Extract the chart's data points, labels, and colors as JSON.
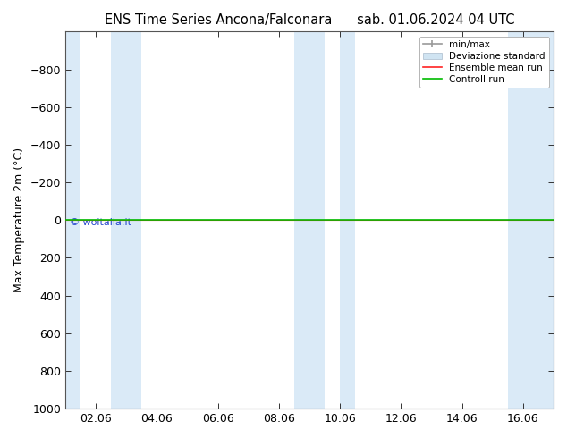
{
  "title_left": "ENS Time Series Ancona/Falconara",
  "title_right": "sab. 01.06.2024 04 UTC",
  "ylabel": "Max Temperature 2m (°C)",
  "ylim_bottom": 1000,
  "ylim_top": -1000,
  "yticks": [
    -800,
    -600,
    -400,
    -200,
    0,
    200,
    400,
    600,
    800,
    1000
  ],
  "xtick_labels": [
    "02.06",
    "04.06",
    "06.06",
    "08.06",
    "10.06",
    "12.06",
    "14.06",
    "16.06"
  ],
  "xtick_positions": [
    1,
    3,
    5,
    7,
    9,
    11,
    13,
    15
  ],
  "x_min": 0,
  "x_max": 16,
  "background_color": "#ffffff",
  "plot_bg_color": "#ffffff",
  "shaded_bands": [
    {
      "x_start": 0.0,
      "x_end": 0.5,
      "color": "#daeaf7"
    },
    {
      "x_start": 1.5,
      "x_end": 2.5,
      "color": "#daeaf7"
    },
    {
      "x_start": 7.5,
      "x_end": 8.5,
      "color": "#daeaf7"
    },
    {
      "x_start": 9.0,
      "x_end": 9.5,
      "color": "#daeaf7"
    },
    {
      "x_start": 14.5,
      "x_end": 15.5,
      "color": "#daeaf7"
    },
    {
      "x_start": 15.5,
      "x_end": 16.0,
      "color": "#daeaf7"
    }
  ],
  "control_run_y": 0,
  "control_run_color": "#00bb00",
  "ensemble_mean_color": "#ff2222",
  "watermark": "© woitalia.it",
  "watermark_color": "#2244cc",
  "legend_entries": [
    "min/max",
    "Deviazione standard",
    "Ensemble mean run",
    "Controll run"
  ],
  "legend_colors_line": [
    "#999999",
    "#bbccdd",
    "#ff2222",
    "#00bb00"
  ],
  "title_fontsize": 10.5,
  "axis_fontsize": 9,
  "tick_color": "#333333"
}
